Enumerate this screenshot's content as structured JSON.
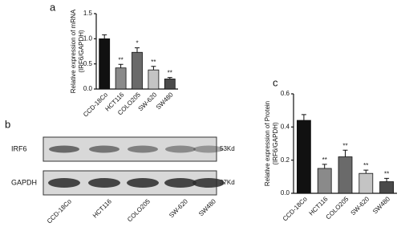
{
  "chart_data": [
    {
      "type": "bar",
      "panel": "a",
      "ylabel": [
        "Relative expression of mRNA",
        "(IRF6/GAPDH)"
      ],
      "categories": [
        "CCD-18Co",
        "HCT116",
        "COLO205",
        "SW-620",
        "SW480"
      ],
      "values": [
        1.0,
        0.42,
        0.73,
        0.38,
        0.2
      ],
      "errors": [
        0.08,
        0.07,
        0.09,
        0.07,
        0.03
      ],
      "annotations": [
        null,
        "**",
        "*",
        "**",
        "**"
      ],
      "colors": [
        "#111111",
        "#8a8a8a",
        "#6a6a6a",
        "#c4c4c4",
        "#4a4a4a"
      ],
      "ylim": [
        0,
        1.5
      ],
      "yticks": [
        {
          "value": 0,
          "label": "0.0"
        },
        {
          "value": 0.5,
          "label": "0.5"
        },
        {
          "value": 1,
          "label": "1.0"
        },
        {
          "value": 1.5,
          "label": "1.5"
        }
      ]
    },
    {
      "type": "bar",
      "panel": "c",
      "ylabel": [
        "Relative expression of Protein",
        "(IRF6/GAPDH)"
      ],
      "categories": [
        "CCD-18Co",
        "HCT116",
        "COLO205",
        "SW-620",
        "SW480"
      ],
      "values": [
        0.44,
        0.15,
        0.22,
        0.12,
        0.07
      ],
      "errors": [
        0.035,
        0.025,
        0.04,
        0.02,
        0.02
      ],
      "annotations": [
        "**",
        "**",
        "**",
        "**"
      ],
      "annotation_start": 1,
      "colors": [
        "#111111",
        "#8a8a8a",
        "#6a6a6a",
        "#c4c4c4",
        "#4a4a4a"
      ],
      "ylim": [
        0,
        0.6
      ],
      "yticks": [
        {
          "value": 0,
          "label": "0.0"
        },
        {
          "value": 0.2,
          "label": "0.2"
        },
        {
          "value": 0.4,
          "label": "0.4"
        },
        {
          "value": 0.6,
          "label": "0.6"
        }
      ]
    }
  ],
  "blot": {
    "panel": "b",
    "rows": [
      {
        "label": "IRF6",
        "size": "53Kd"
      },
      {
        "label": "GAPDH",
        "size": "37Kd"
      }
    ],
    "lanes": [
      "CCD-18Co",
      "HCT116",
      "COLO205",
      "SW-620",
      "SW480"
    ]
  }
}
